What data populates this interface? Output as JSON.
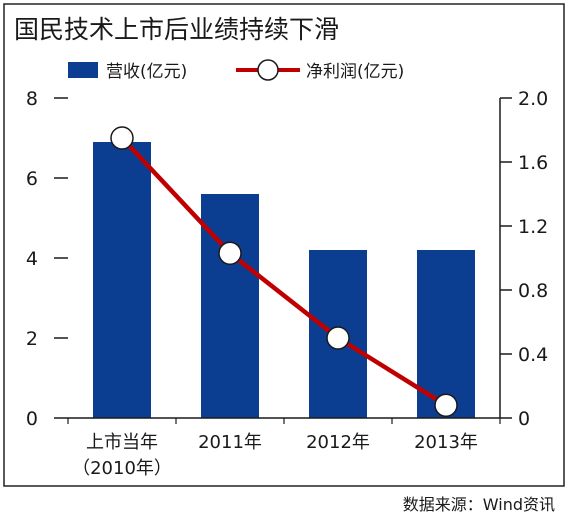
{
  "chart_data": {
    "type": "bar",
    "title": "国民技术上市后业绩持续下滑",
    "categories": [
      "上市当年",
      "2011年",
      "2012年",
      "2013年"
    ],
    "category_sublabels": [
      "（2010年）",
      "",
      "",
      ""
    ],
    "series": [
      {
        "name": "营收(亿元)",
        "kind": "bar",
        "axis": "left",
        "color": "#0b3d91",
        "values": [
          6.9,
          5.6,
          4.2,
          4.2
        ]
      },
      {
        "name": "净利润(亿元)",
        "kind": "line",
        "axis": "right",
        "color": "#c00000",
        "values": [
          1.75,
          1.03,
          0.5,
          0.08
        ]
      }
    ],
    "left_axis": {
      "ylim": [
        0,
        8
      ],
      "ticks": [
        "0",
        "2",
        "4",
        "6",
        "8"
      ]
    },
    "right_axis": {
      "ylim": [
        0,
        2
      ],
      "ticks": [
        "0",
        "0.4",
        "0.8",
        "1.2",
        "1.6",
        "2.0"
      ]
    },
    "legend_position": "top",
    "grid": false
  },
  "source": "数据来源：Wind资讯"
}
